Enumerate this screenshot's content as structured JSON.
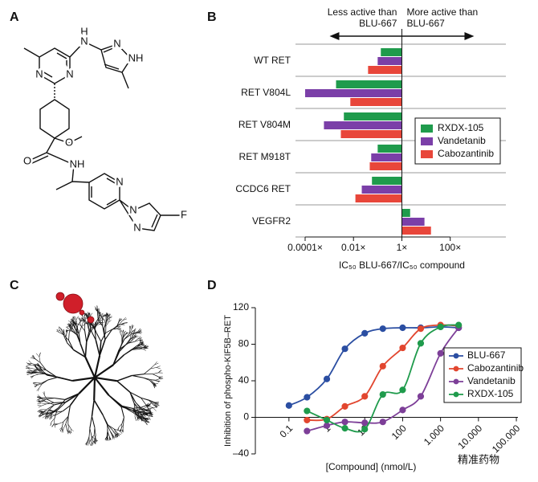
{
  "panels": [
    "A",
    "B",
    "C",
    "D"
  ],
  "structure": {
    "atoms": [
      "H",
      "N",
      "N",
      "NH",
      "N",
      "N",
      "O",
      "O",
      "NH",
      "N",
      "N",
      "N",
      "F"
    ]
  },
  "chart_data": [
    {
      "type": "bar",
      "orientation": "horizontal",
      "xscale": "log",
      "annotations": [
        [
          "Less active than",
          "BLU-667"
        ],
        [
          "More active than",
          "BLU-667"
        ]
      ],
      "xlabel": "IC₅₀ BLU-667/IC₅₀ compound",
      "categories": [
        "WT RET",
        "RET V804L",
        "RET V804M",
        "RET M918T",
        "CCDC6 RET",
        "VEGFR2"
      ],
      "series": [
        {
          "name": "RXDX-105",
          "color": "#1f9b4c",
          "values": [
            0.135,
            0.0019,
            0.004,
            0.1,
            0.058,
            2.2
          ]
        },
        {
          "name": "Vandetanib",
          "color": "#7b3fa8",
          "values": [
            0.1,
            0.0001,
            0.0006,
            0.054,
            0.022,
            8.6
          ]
        },
        {
          "name": "Cabozantinib",
          "color": "#e8463a",
          "values": [
            0.04,
            0.0074,
            0.003,
            0.047,
            0.012,
            16
          ]
        }
      ],
      "xlim": [
        4e-05,
        20000
      ],
      "xticks": [
        {
          "value": 0.0001,
          "label": "0.0001×"
        },
        {
          "value": 0.01,
          "label": "0.01×"
        },
        {
          "value": 1,
          "label": "1×"
        },
        {
          "value": 100,
          "label": "100×"
        }
      ],
      "legend": "right"
    },
    {
      "type": "line",
      "xscale": "log",
      "ylabel": "Inhibition of phospho-KIF5B–RET",
      "xlabel": "[Compound] (nmol/L)",
      "x": [
        0.1,
        0.3,
        1,
        3,
        10,
        30,
        100,
        300,
        1000,
        3000
      ],
      "series": [
        {
          "name": "BLU-667",
          "color": "#2b4ea2",
          "values": [
            13,
            22,
            42,
            75,
            92,
            97,
            98,
            98,
            99,
            98
          ]
        },
        {
          "name": "Cabozantinib",
          "color": "#e2462f",
          "values": [
            null,
            -3,
            -2,
            12,
            23,
            56,
            76,
            97,
            101,
            100
          ]
        },
        {
          "name": "Vandetanib",
          "color": "#7d3f98",
          "values": [
            null,
            -15,
            -9,
            -5,
            -6,
            -5,
            8,
            23,
            70,
            98
          ]
        },
        {
          "name": "RXDX-105",
          "color": "#1f9b4c",
          "values": [
            null,
            7,
            -3,
            -12,
            -13,
            25,
            30,
            81,
            99,
            101
          ]
        }
      ],
      "xlim": [
        0.013,
        110000
      ],
      "xticks": [
        0.1,
        1,
        10,
        100,
        {
          "value": 1000,
          "label": "1.000"
        },
        {
          "value": 10000,
          "label": "10.000"
        },
        {
          "value": 100000,
          "label": "100.000"
        }
      ],
      "ylim": [
        -40,
        120
      ],
      "yticks": [
        {
          "value": -40,
          "label": "–40"
        },
        0,
        40,
        80,
        120
      ],
      "legend": "right"
    }
  ],
  "watermark": "精准药物"
}
